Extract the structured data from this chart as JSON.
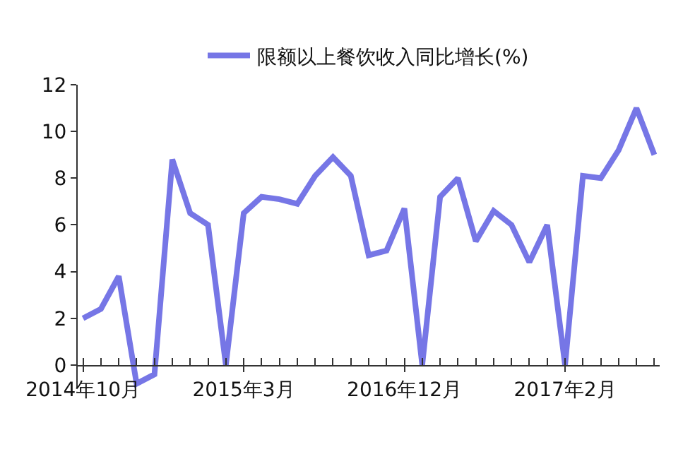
{
  "chart_data": {
    "type": "line",
    "categories": [
      "2014年10月",
      null,
      null,
      null,
      null,
      null,
      null,
      null,
      null,
      "2015年3月",
      null,
      null,
      null,
      null,
      null,
      null,
      null,
      null,
      "2016年12月",
      null,
      null,
      null,
      null,
      null,
      null,
      null,
      null,
      "2017年2月",
      null,
      null,
      null,
      null,
      null
    ],
    "series": [
      {
        "name": "限额以上餐饮收入同比增长(%)",
        "color": "#7676e6",
        "values": [
          2.0,
          2.4,
          3.8,
          -0.8,
          -0.4,
          8.8,
          6.5,
          6.0,
          0,
          6.5,
          7.2,
          7.1,
          6.9,
          8.1,
          8.9,
          8.1,
          4.7,
          4.9,
          6.7,
          0,
          7.2,
          8.0,
          5.3,
          6.6,
          6.0,
          4.4,
          6.0,
          0,
          8.1,
          8.0,
          9.2,
          11.0,
          9.0
        ]
      }
    ],
    "ylim": [
      -1,
      12
    ],
    "yticks": [
      0,
      2,
      4,
      6,
      8,
      10,
      12
    ],
    "legend": "top",
    "marker": "none",
    "line_style": "solid"
  }
}
